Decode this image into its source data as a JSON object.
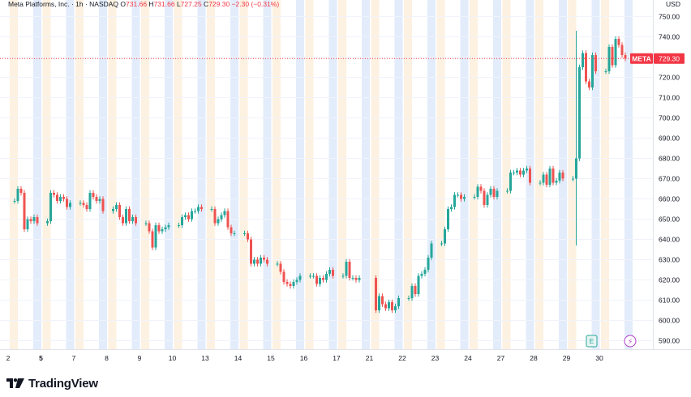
{
  "header": {
    "symbol_line": "Meta Platforms, Inc. · 1h · NASDAQ",
    "o_label": "O",
    "o_value": "731.66",
    "h_label": "H",
    "h_value": "731.66",
    "l_label": "L",
    "l_value": "727.25",
    "c_label": "C",
    "c_value": "729.30",
    "change": "−2.30 (−0.31%)"
  },
  "price_scale": {
    "currency": "USD",
    "ticks": [
      "750.00",
      "740.00",
      "730.00",
      "720.00",
      "710.00",
      "700.00",
      "690.00",
      "680.00",
      "670.00",
      "660.00",
      "650.00",
      "640.00",
      "630.00",
      "620.00",
      "610.00",
      "600.00",
      "590.00"
    ],
    "last_price_tag": {
      "symbol": "META",
      "value": "729.30",
      "color": "#f23645"
    }
  },
  "time_scale": {
    "labels": [
      "2",
      "5",
      "7",
      "8",
      "9",
      "10",
      "13",
      "14",
      "15",
      "16",
      "17",
      "21",
      "22",
      "23",
      "24",
      "27",
      "28",
      "29",
      "30"
    ],
    "bold_labels": [
      "5"
    ]
  },
  "markers": {
    "earnings": "E",
    "dividend": "⚡"
  },
  "colors": {
    "up": "#26a69a",
    "down": "#ef5350",
    "premarket_band": "#e3ecfb",
    "afterhours_band": "#fdf1e1",
    "accent": "#f23645"
  },
  "footer": {
    "brand": "TradingView",
    "logo": "tradingview-logo-icon"
  },
  "chart_data": {
    "type": "candlestick",
    "title": "Meta Platforms, Inc. · 1h · NASDAQ",
    "xlabel": "",
    "ylabel": "",
    "ylim": [
      585,
      752
    ],
    "x_categories": [
      "2",
      "5",
      "7",
      "8",
      "9",
      "10",
      "13",
      "14",
      "15",
      "16",
      "17",
      "21",
      "22",
      "23",
      "24",
      "27",
      "28",
      "29",
      "30"
    ],
    "last_price": 729.3,
    "series": [
      {
        "name": "META 1h",
        "closes": [
          [
            659,
            665,
            663,
            645,
            650,
            649,
            651,
            648
          ],
          [
            649,
            663,
            662,
            659,
            661,
            660,
            656,
            658
          ],
          [
            658,
            657,
            655,
            663,
            661,
            659,
            660,
            654
          ],
          [
            655,
            657,
            651,
            648,
            655,
            649,
            651,
            648
          ],
          [
            648,
            644,
            636,
            647,
            644,
            645,
            646,
            647
          ],
          [
            647,
            651,
            652,
            650,
            654,
            654,
            656,
            655
          ],
          [
            655,
            648,
            650,
            652,
            654,
            646,
            643,
            643
          ],
          [
            643,
            640,
            628,
            630,
            628,
            631,
            630,
            628
          ],
          [
            628,
            624,
            619,
            618,
            617,
            619,
            620,
            622
          ],
          [
            622,
            622,
            618,
            621,
            620,
            623,
            625,
            622
          ],
          [
            622,
            629,
            621,
            621,
            620,
            621
          ],
          [
            605,
            612,
            608,
            606,
            609,
            605,
            607,
            611
          ],
          [
            611,
            617,
            613,
            622,
            623,
            625,
            631,
            638
          ],
          [
            638,
            645,
            655,
            656,
            662,
            662,
            660,
            661
          ],
          [
            661,
            666,
            664,
            657,
            662,
            665,
            661,
            664
          ],
          [
            664,
            673,
            673,
            674,
            672,
            674,
            675,
            668
          ],
          [
            668,
            672,
            667,
            675,
            668,
            669,
            673,
            670
          ],
          [
            670,
            680,
            725,
            732,
            718,
            715,
            731,
            723
          ],
          [
            723,
            735,
            726,
            739,
            736,
            731,
            729.3
          ]
        ]
      }
    ]
  }
}
